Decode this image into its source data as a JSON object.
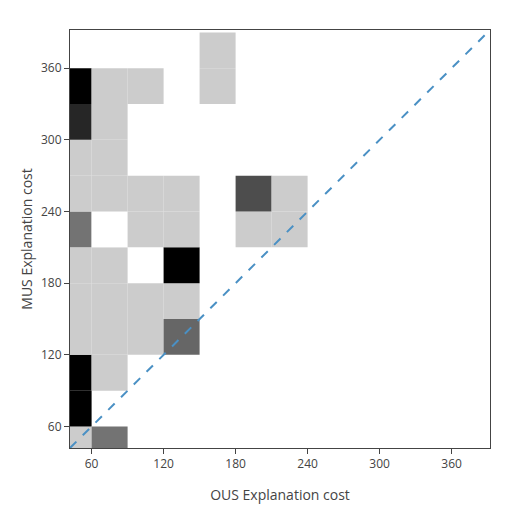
{
  "chart_data": {
    "type": "heatmap",
    "xlabel": "OUS Explanation cost",
    "ylabel": "MUS Explanation cost",
    "xlim": [
      42,
      392
    ],
    "ylim": [
      42,
      392
    ],
    "xticks": [
      60,
      120,
      180,
      240,
      300,
      360
    ],
    "yticks": [
      60,
      120,
      180,
      240,
      300,
      360
    ],
    "grid": false,
    "bin_size": 30,
    "cells": [
      {
        "x": 45,
        "y": 45,
        "gray": 0.8
      },
      {
        "x": 45,
        "y": 75,
        "gray": 0.0
      },
      {
        "x": 45,
        "y": 105,
        "gray": 0.0
      },
      {
        "x": 45,
        "y": 135,
        "gray": 0.8
      },
      {
        "x": 45,
        "y": 165,
        "gray": 0.8
      },
      {
        "x": 45,
        "y": 195,
        "gray": 0.8
      },
      {
        "x": 45,
        "y": 225,
        "gray": 0.45
      },
      {
        "x": 45,
        "y": 255,
        "gray": 0.8
      },
      {
        "x": 45,
        "y": 285,
        "gray": 0.8
      },
      {
        "x": 45,
        "y": 315,
        "gray": 0.15
      },
      {
        "x": 45,
        "y": 345,
        "gray": 0.0
      },
      {
        "x": 75,
        "y": 45,
        "gray": 0.45
      },
      {
        "x": 75,
        "y": 105,
        "gray": 0.8
      },
      {
        "x": 75,
        "y": 135,
        "gray": 0.8
      },
      {
        "x": 75,
        "y": 165,
        "gray": 0.8
      },
      {
        "x": 75,
        "y": 195,
        "gray": 0.8
      },
      {
        "x": 75,
        "y": 225,
        "gray": 1.0
      },
      {
        "x": 75,
        "y": 255,
        "gray": 0.8
      },
      {
        "x": 75,
        "y": 285,
        "gray": 0.8
      },
      {
        "x": 75,
        "y": 315,
        "gray": 0.8
      },
      {
        "x": 75,
        "y": 345,
        "gray": 0.8
      },
      {
        "x": 105,
        "y": 135,
        "gray": 0.8
      },
      {
        "x": 105,
        "y": 165,
        "gray": 0.8
      },
      {
        "x": 105,
        "y": 225,
        "gray": 0.8
      },
      {
        "x": 105,
        "y": 255,
        "gray": 0.8
      },
      {
        "x": 105,
        "y": 345,
        "gray": 0.8
      },
      {
        "x": 135,
        "y": 135,
        "gray": 0.4
      },
      {
        "x": 135,
        "y": 165,
        "gray": 0.8
      },
      {
        "x": 135,
        "y": 195,
        "gray": 0.0
      },
      {
        "x": 135,
        "y": 225,
        "gray": 0.8
      },
      {
        "x": 135,
        "y": 255,
        "gray": 0.8
      },
      {
        "x": 165,
        "y": 345,
        "gray": 0.8
      },
      {
        "x": 165,
        "y": 375,
        "gray": 0.8
      },
      {
        "x": 195,
        "y": 225,
        "gray": 0.8
      },
      {
        "x": 195,
        "y": 255,
        "gray": 0.3
      },
      {
        "x": 225,
        "y": 225,
        "gray": 0.8
      },
      {
        "x": 225,
        "y": 255,
        "gray": 0.8
      }
    ],
    "series": [
      {
        "type": "line",
        "x": [
          42,
          392
        ],
        "y": [
          42,
          392
        ],
        "color": "#4a90c4",
        "line_style": "dashed"
      }
    ]
  }
}
